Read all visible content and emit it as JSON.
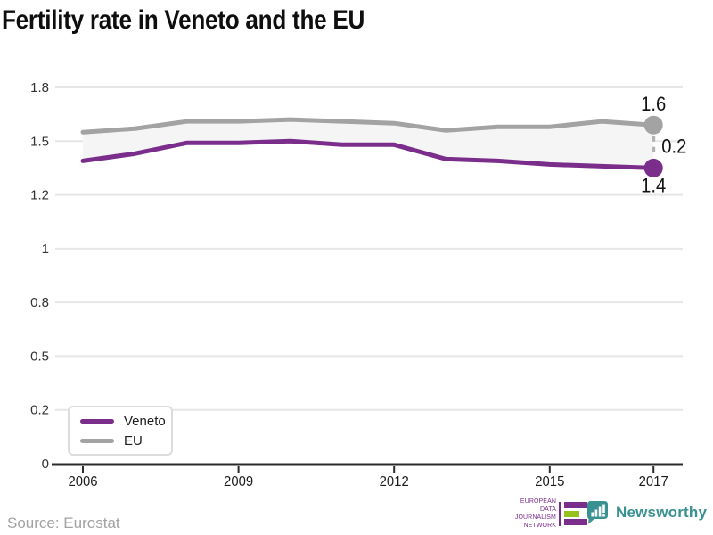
{
  "title": "Fertility rate in Veneto and the EU",
  "chart_data": {
    "type": "line",
    "title": "Fertility rate in Veneto and the EU",
    "x": [
      2006,
      2007,
      2008,
      2009,
      2010,
      2011,
      2012,
      2013,
      2014,
      2015,
      2016,
      2017
    ],
    "series": [
      {
        "name": "Veneto",
        "color": "#7b2d8b",
        "values": [
          1.39,
          1.43,
          1.49,
          1.49,
          1.5,
          1.48,
          1.48,
          1.4,
          1.39,
          1.37,
          1.36,
          1.35
        ]
      },
      {
        "name": "EU",
        "color": "#a3a3a3",
        "values": [
          1.55,
          1.57,
          1.61,
          1.61,
          1.62,
          1.61,
          1.6,
          1.56,
          1.58,
          1.58,
          1.61,
          1.59
        ]
      }
    ],
    "yticks": [
      0,
      0.2,
      0.5,
      0.8,
      1,
      1.2,
      1.5,
      1.8
    ],
    "ytick_labels": [
      "0",
      "0.2",
      "0.5",
      "0.8",
      "1",
      "1.2",
      "1.5",
      "1.8"
    ],
    "xticks": [
      2006,
      2009,
      2012,
      2015,
      2017
    ],
    "ylim": [
      0,
      1.8
    ],
    "grid": "horizontal",
    "band_between_series": true,
    "band_color": "#f5f5f5",
    "legend_position": "bottom-left",
    "annotations": {
      "eu_end": "1.6",
      "gap": "0.2",
      "veneto_end": "1.4"
    }
  },
  "legend": {
    "items": [
      {
        "label": "Veneto",
        "color": "#7b2d8b"
      },
      {
        "label": "EU",
        "color": "#a3a3a3"
      }
    ]
  },
  "footer": {
    "source": "Source: Eurostat",
    "edjn": {
      "lines": [
        "EUROPEAN",
        "DATA JOURNALISM",
        "NETWORK"
      ],
      "purple": "#7b2d8b",
      "green": "#97c11f"
    },
    "newsworthy": {
      "label": "Newsworthy",
      "color": "#3a9191"
    }
  }
}
